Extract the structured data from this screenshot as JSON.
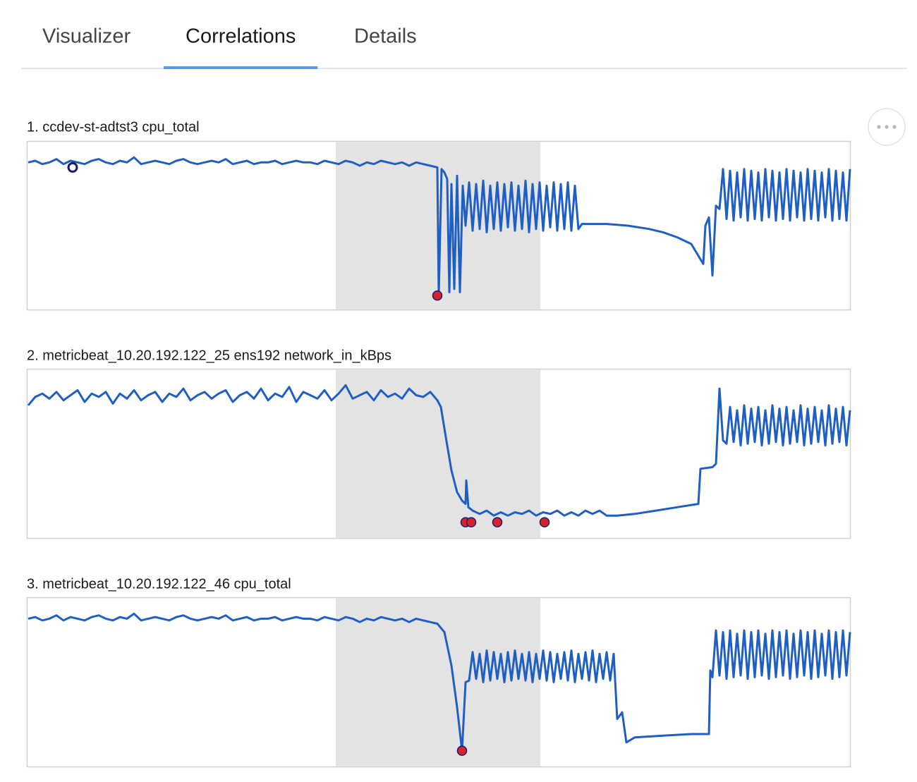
{
  "tabs": [
    "Visualizer",
    "Correlations",
    "Details"
  ],
  "active_tab": 1,
  "chart_data": [
    {
      "type": "line",
      "title": "1. ccdev-st-adtst3 cpu_total",
      "color": "#1f5fc4",
      "xlim": [
        0,
        1165
      ],
      "ylim": [
        0,
        100
      ],
      "highlight": [
        436,
        726
      ],
      "x": [
        0,
        10,
        20,
        30,
        40,
        50,
        60,
        70,
        80,
        90,
        100,
        110,
        120,
        130,
        140,
        150,
        160,
        170,
        180,
        190,
        200,
        210,
        220,
        230,
        240,
        250,
        260,
        270,
        280,
        290,
        300,
        310,
        320,
        330,
        340,
        350,
        360,
        370,
        380,
        390,
        400,
        410,
        420,
        430,
        440,
        450,
        460,
        470,
        480,
        490,
        500,
        510,
        520,
        530,
        540,
        550,
        560,
        570,
        580,
        582,
        586,
        590,
        594,
        597,
        600,
        604,
        608,
        612,
        616,
        620,
        625,
        630,
        635,
        640,
        645,
        650,
        655,
        660,
        665,
        670,
        675,
        680,
        685,
        690,
        695,
        700,
        705,
        710,
        715,
        720,
        725,
        730,
        735,
        740,
        745,
        750,
        755,
        760,
        765,
        770,
        775,
        780,
        785,
        800,
        820,
        850,
        880,
        900,
        920,
        940,
        957,
        960,
        965,
        970,
        975,
        980,
        985,
        990,
        995,
        1000,
        1005,
        1010,
        1015,
        1020,
        1025,
        1030,
        1035,
        1040,
        1045,
        1050,
        1055,
        1060,
        1065,
        1070,
        1075,
        1080,
        1085,
        1090,
        1095,
        1100,
        1105,
        1110,
        1115,
        1120,
        1125,
        1130,
        1135,
        1140,
        1145,
        1150,
        1155,
        1160,
        1165
      ],
      "values": [
        88,
        89,
        87,
        88,
        90,
        87,
        89,
        88,
        87,
        89,
        90,
        88,
        87,
        89,
        88,
        91,
        87,
        88,
        89,
        88,
        87,
        89,
        90,
        88,
        87,
        88,
        89,
        88,
        90,
        87,
        88,
        89,
        87,
        88,
        88,
        89,
        87,
        88,
        89,
        88,
        88,
        87,
        89,
        88,
        87,
        89,
        88,
        86,
        88,
        87,
        89,
        88,
        87,
        88,
        86,
        88,
        87,
        86,
        85,
        8,
        84,
        82,
        78,
        10,
        75,
        12,
        80,
        10,
        74,
        50,
        76,
        47,
        75,
        48,
        77,
        46,
        74,
        48,
        76,
        47,
        75,
        49,
        76,
        47,
        74,
        48,
        77,
        46,
        75,
        48,
        76,
        47,
        74,
        49,
        76,
        47,
        75,
        48,
        76,
        47,
        74,
        48,
        51,
        51,
        51,
        50,
        48,
        46,
        43,
        39,
        27,
        50,
        55,
        20,
        62,
        60,
        84,
        54,
        83,
        53,
        82,
        55,
        84,
        53,
        83,
        54,
        82,
        53,
        84,
        55,
        83,
        53,
        82,
        54,
        84,
        53,
        83,
        55,
        82,
        53,
        84,
        54,
        83,
        53,
        82,
        55,
        84,
        53,
        83,
        54,
        82,
        53,
        84
      ],
      "anomalies": {
        "x": [
          63,
          580
        ],
        "values": [
          85,
          8
        ],
        "colors": [
          "none",
          "#d8232a"
        ]
      }
    },
    {
      "type": "line",
      "title": "2. metricbeat_10.20.192.122_25 ens192 network_in_kBps",
      "color": "#1f5fc4",
      "xlim": [
        0,
        1165
      ],
      "ylim": [
        0,
        100
      ],
      "highlight": [
        436,
        726
      ],
      "x": [
        0,
        10,
        20,
        30,
        40,
        50,
        60,
        70,
        80,
        90,
        100,
        110,
        120,
        130,
        140,
        150,
        160,
        170,
        180,
        190,
        200,
        210,
        220,
        230,
        240,
        250,
        260,
        270,
        280,
        290,
        300,
        310,
        320,
        330,
        340,
        350,
        360,
        370,
        380,
        390,
        400,
        410,
        420,
        430,
        440,
        450,
        460,
        470,
        480,
        490,
        500,
        510,
        520,
        530,
        540,
        550,
        560,
        570,
        580,
        585,
        592,
        600,
        608,
        615,
        620,
        621,
        624,
        630,
        640,
        650,
        660,
        670,
        680,
        690,
        700,
        710,
        720,
        730,
        740,
        750,
        760,
        770,
        780,
        790,
        800,
        810,
        820,
        835,
        860,
        890,
        920,
        950,
        953,
        970,
        975,
        980,
        985,
        990,
        995,
        1000,
        1005,
        1010,
        1015,
        1020,
        1025,
        1030,
        1035,
        1040,
        1045,
        1050,
        1055,
        1060,
        1065,
        1070,
        1075,
        1080,
        1085,
        1090,
        1095,
        1100,
        1105,
        1110,
        1115,
        1120,
        1125,
        1130,
        1135,
        1140,
        1145,
        1150,
        1155,
        1160,
        1165
      ],
      "values": [
        79,
        84,
        86,
        83,
        87,
        82,
        85,
        88,
        81,
        86,
        84,
        87,
        80,
        86,
        83,
        88,
        82,
        85,
        87,
        81,
        86,
        84,
        89,
        82,
        85,
        87,
        83,
        86,
        88,
        81,
        85,
        87,
        83,
        89,
        82,
        86,
        84,
        90,
        81,
        87,
        85,
        83,
        88,
        82,
        86,
        91,
        83,
        85,
        87,
        82,
        88,
        84,
        86,
        83,
        89,
        85,
        84,
        87,
        82,
        78,
        60,
        40,
        27,
        22,
        20,
        34,
        18,
        16,
        14,
        16,
        13,
        15,
        13,
        15,
        14,
        16,
        13,
        15,
        14,
        16,
        13,
        15,
        13,
        16,
        14,
        16,
        13,
        13,
        14,
        16,
        18,
        20,
        41,
        42,
        44,
        89,
        58,
        56,
        78,
        57,
        76,
        55,
        79,
        56,
        77,
        57,
        78,
        55,
        76,
        56,
        79,
        57,
        77,
        55,
        78,
        56,
        76,
        57,
        79,
        55,
        77,
        56,
        78,
        57,
        76,
        55,
        79,
        56,
        77,
        57,
        78,
        55,
        76
      ],
      "anomalies": {
        "x": [
          620,
          628,
          665,
          732
        ],
        "values": [
          9,
          9,
          9,
          9
        ],
        "colors": [
          "#d8232a",
          "#d8232a",
          "#d8232a",
          "#d8232a"
        ]
      }
    },
    {
      "type": "line",
      "title": "3. metricbeat_10.20.192.122_46 cpu_total",
      "color": "#1f5fc4",
      "xlim": [
        0,
        1165
      ],
      "ylim": [
        0,
        100
      ],
      "highlight": [
        436,
        726
      ],
      "x": [
        0,
        10,
        20,
        30,
        40,
        50,
        60,
        70,
        80,
        90,
        100,
        110,
        120,
        130,
        140,
        150,
        160,
        170,
        180,
        190,
        200,
        210,
        220,
        230,
        240,
        250,
        260,
        270,
        280,
        290,
        300,
        310,
        320,
        330,
        340,
        350,
        360,
        370,
        380,
        390,
        400,
        410,
        420,
        430,
        440,
        450,
        460,
        470,
        480,
        490,
        500,
        510,
        520,
        530,
        540,
        550,
        560,
        570,
        580,
        590,
        600,
        608,
        615,
        620,
        625,
        630,
        635,
        640,
        645,
        650,
        655,
        660,
        665,
        670,
        675,
        680,
        685,
        690,
        695,
        700,
        705,
        710,
        715,
        720,
        725,
        730,
        735,
        740,
        745,
        750,
        755,
        760,
        765,
        770,
        775,
        780,
        785,
        790,
        795,
        800,
        805,
        810,
        815,
        820,
        825,
        830,
        835,
        842,
        848,
        860,
        900,
        940,
        965,
        967,
        970,
        975,
        980,
        985,
        990,
        995,
        1000,
        1005,
        1010,
        1015,
        1020,
        1025,
        1030,
        1035,
        1040,
        1045,
        1050,
        1055,
        1060,
        1065,
        1070,
        1075,
        1080,
        1085,
        1090,
        1095,
        1100,
        1105,
        1110,
        1115,
        1120,
        1125,
        1130,
        1135,
        1140,
        1145,
        1150,
        1155,
        1160,
        1165
      ],
      "values": [
        88,
        89,
        87,
        88,
        90,
        87,
        89,
        88,
        87,
        89,
        90,
        88,
        87,
        89,
        88,
        91,
        87,
        88,
        89,
        88,
        87,
        89,
        90,
        88,
        87,
        88,
        89,
        88,
        90,
        87,
        88,
        89,
        87,
        88,
        88,
        89,
        87,
        88,
        89,
        88,
        88,
        87,
        89,
        88,
        87,
        89,
        88,
        86,
        88,
        87,
        89,
        88,
        87,
        88,
        86,
        88,
        87,
        86,
        85,
        80,
        60,
        35,
        9,
        50,
        51,
        68,
        52,
        67,
        50,
        69,
        51,
        68,
        52,
        67,
        50,
        68,
        51,
        69,
        52,
        67,
        51,
        68,
        50,
        67,
        52,
        69,
        51,
        68,
        50,
        67,
        52,
        68,
        51,
        69,
        50,
        67,
        52,
        68,
        51,
        69,
        50,
        67,
        52,
        68,
        51,
        67,
        28,
        32,
        14,
        17,
        18,
        19,
        19,
        57,
        53,
        81,
        54,
        80,
        52,
        81,
        53,
        79,
        54,
        81,
        52,
        80,
        53,
        81,
        54,
        79,
        52,
        81,
        53,
        80,
        54,
        81,
        52,
        79,
        53,
        81,
        54,
        80,
        52,
        81,
        53,
        79,
        54,
        81,
        52,
        80,
        53,
        81,
        54,
        80
      ],
      "anomalies": {
        "x": [
          615
        ],
        "values": [
          9
        ],
        "colors": [
          "#d8232a"
        ]
      }
    }
  ]
}
